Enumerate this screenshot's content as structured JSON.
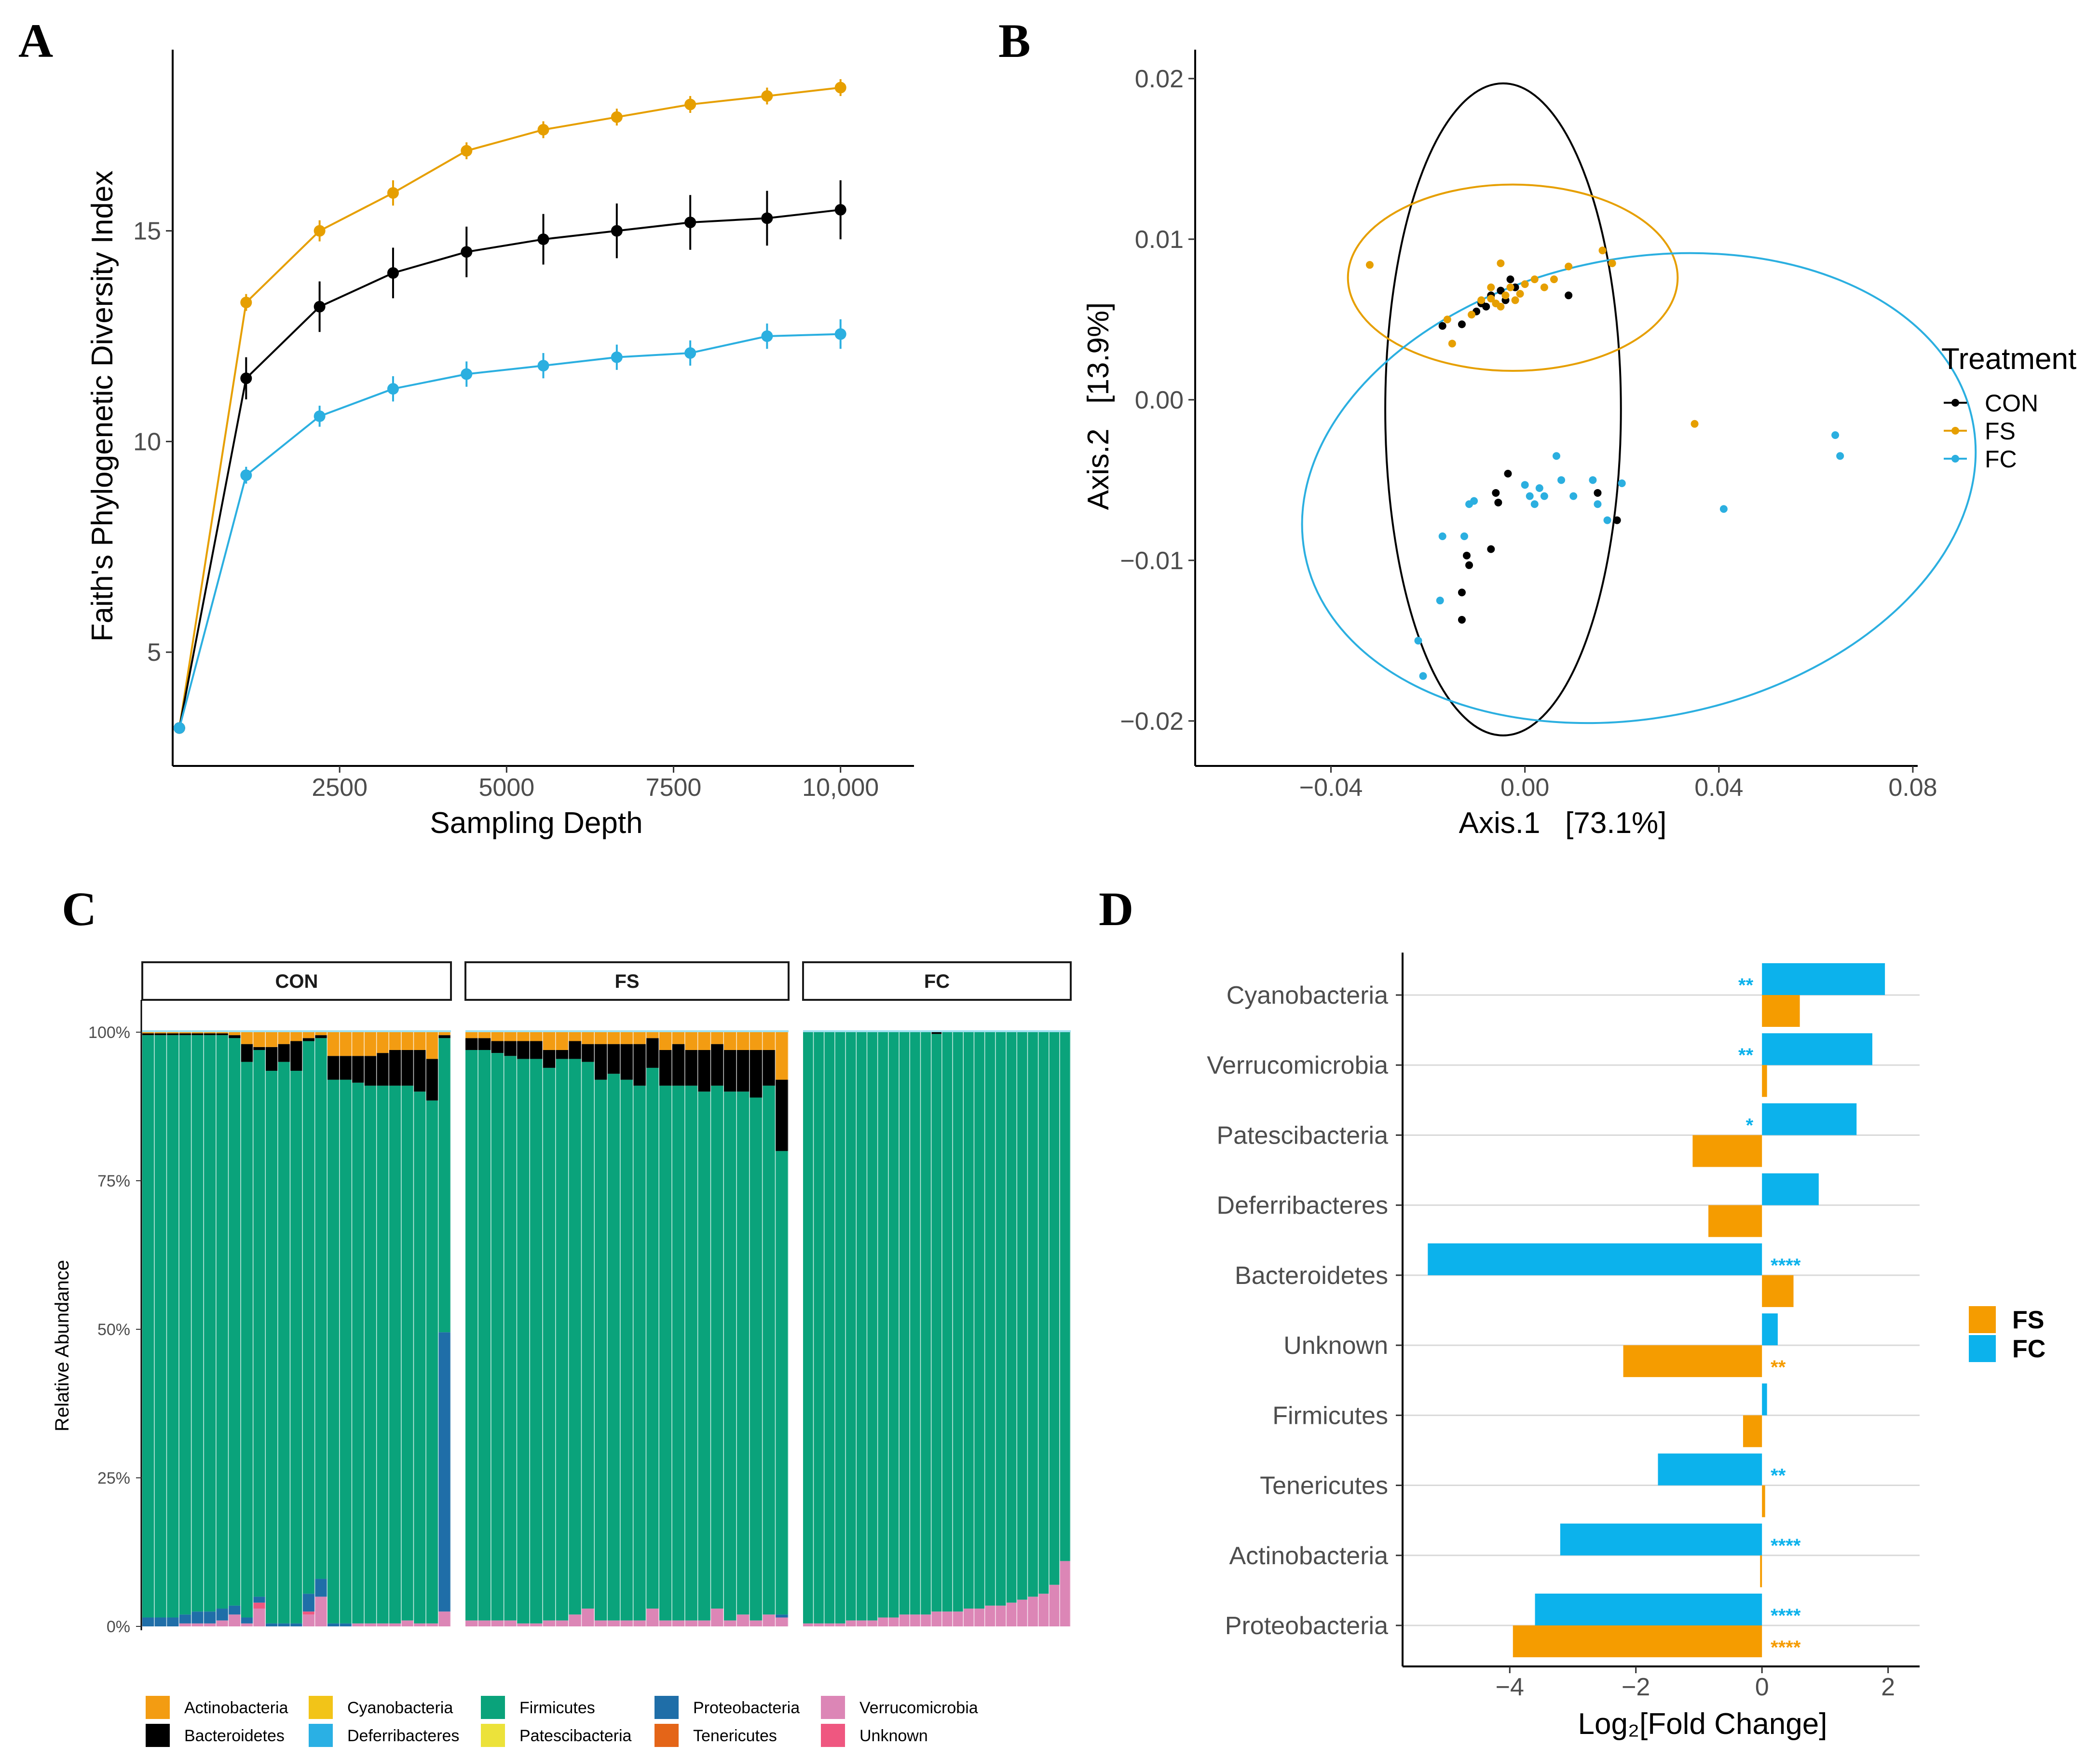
{
  "panels": {
    "a": "A",
    "b": "B",
    "c": "C",
    "d": "D"
  },
  "colors": {
    "CON": "#000000",
    "FS": "#e69f00",
    "FC": "#2bafe0",
    "d_FS": "#f59c00",
    "d_FC": "#0cb2ec"
  },
  "chart_data": [
    {
      "type": "line",
      "panel": "A",
      "title": "",
      "xlabel": "Sampling Depth",
      "ylabel": "Faith's Phylogenetic Diversity Index",
      "xlim": [
        0,
        11100
      ],
      "ylim": [
        2.3,
        19.3
      ],
      "xticks": [
        2500,
        5000,
        7500,
        10000
      ],
      "xtick_labels": [
        "2500",
        "5000",
        "7500",
        "10,000"
      ],
      "yticks": [
        5,
        10,
        15
      ],
      "ytick_labels": [
        "5",
        "10",
        "15"
      ],
      "x": [
        100,
        1100,
        2200,
        3300,
        4400,
        5550,
        6650,
        7750,
        8900,
        10000
      ],
      "series": [
        {
          "name": "FS",
          "color": "#e69f00",
          "values": [
            3.2,
            13.3,
            15.0,
            15.9,
            16.9,
            17.4,
            17.7,
            18.0,
            18.2,
            18.4
          ],
          "err": [
            0.1,
            0.2,
            0.25,
            0.3,
            0.2,
            0.2,
            0.2,
            0.2,
            0.2,
            0.2
          ]
        },
        {
          "name": "CON",
          "color": "#000000",
          "values": [
            3.2,
            11.5,
            13.2,
            14.0,
            14.5,
            14.8,
            15.0,
            15.2,
            15.3,
            15.5
          ],
          "err": [
            0.1,
            0.5,
            0.6,
            0.6,
            0.6,
            0.6,
            0.65,
            0.65,
            0.65,
            0.7
          ]
        },
        {
          "name": "FC",
          "color": "#2bafe0",
          "values": [
            3.2,
            9.2,
            10.6,
            11.25,
            11.6,
            11.8,
            12.0,
            12.1,
            12.5,
            12.55
          ],
          "err": [
            0.1,
            0.2,
            0.25,
            0.3,
            0.3,
            0.3,
            0.3,
            0.3,
            0.3,
            0.35
          ]
        }
      ]
    },
    {
      "type": "scatter",
      "panel": "B",
      "title": "",
      "xlabel": "Axis.1   [73.1%]",
      "ylabel": "Axis.2   [13.9%]",
      "xlim": [
        -0.068,
        0.081
      ],
      "ylim": [
        -0.0228,
        0.0218
      ],
      "xticks": [
        -0.04,
        0,
        0.04,
        0.08
      ],
      "xtick_labels": [
        "−0.04",
        "0.00",
        "0.04",
        "0.08"
      ],
      "yticks": [
        -0.02,
        -0.01,
        0,
        0.01,
        0.02
      ],
      "ytick_labels": [
        "−0.02",
        "−0.01",
        "0.00",
        "0.01",
        "0.02"
      ],
      "legend_title": "Treatment",
      "series": [
        {
          "name": "CON",
          "color": "#000000",
          "points": [
            [
              -0.017,
              0.0046
            ],
            [
              -0.013,
              0.0047
            ],
            [
              -0.01,
              0.0055
            ],
            [
              -0.009,
              0.006
            ],
            [
              -0.007,
              0.0065
            ],
            [
              -0.005,
              0.0068
            ],
            [
              -0.004,
              0.0062
            ],
            [
              -0.003,
              0.0075
            ],
            [
              -0.002,
              0.007
            ],
            [
              -0.008,
              0.0058
            ],
            [
              0.009,
              0.0065
            ],
            [
              -0.0035,
              -0.0046
            ],
            [
              -0.006,
              -0.0058
            ],
            [
              -0.0055,
              -0.0064
            ],
            [
              -0.007,
              -0.0093
            ],
            [
              -0.012,
              -0.0097
            ],
            [
              -0.0115,
              -0.0103
            ],
            [
              -0.013,
              -0.012
            ],
            [
              -0.013,
              -0.0137
            ],
            [
              0.015,
              -0.0058
            ],
            [
              0.019,
              -0.0075
            ]
          ],
          "ellipse": {
            "cx": -0.0045,
            "cy": -0.0006,
            "rx": 0.0243,
            "ry": 0.0203,
            "angle_deg": 0
          }
        },
        {
          "name": "FS",
          "color": "#e69f00",
          "points": [
            [
              -0.032,
              0.0084
            ],
            [
              -0.016,
              0.005
            ],
            [
              -0.015,
              0.0035
            ],
            [
              -0.011,
              0.0053
            ],
            [
              -0.009,
              0.0062
            ],
            [
              -0.007,
              0.0063
            ],
            [
              -0.006,
              0.006
            ],
            [
              -0.005,
              0.0058
            ],
            [
              -0.004,
              0.0065
            ],
            [
              -0.003,
              0.007
            ],
            [
              -0.002,
              0.0062
            ],
            [
              0.0,
              0.0072
            ],
            [
              0.002,
              0.0075
            ],
            [
              0.004,
              0.007
            ],
            [
              0.006,
              0.0075
            ],
            [
              0.009,
              0.0083
            ],
            [
              0.016,
              0.0093
            ],
            [
              0.018,
              0.0085
            ],
            [
              -0.005,
              0.0085
            ],
            [
              -0.001,
              0.0066
            ],
            [
              -0.007,
              0.007
            ],
            [
              0.035,
              -0.0015
            ]
          ],
          "ellipse": {
            "cx": -0.0025,
            "cy": 0.0076,
            "rx": 0.034,
            "ry": 0.0058,
            "angle_deg": 0
          }
        },
        {
          "name": "FC",
          "color": "#2bafe0",
          "points": [
            [
              -0.022,
              -0.015
            ],
            [
              -0.021,
              -0.0172
            ],
            [
              -0.0175,
              -0.0125
            ],
            [
              -0.017,
              -0.0085
            ],
            [
              -0.0125,
              -0.0085
            ],
            [
              -0.0115,
              -0.0065
            ],
            [
              -0.0105,
              -0.0063
            ],
            [
              0.0,
              -0.0053
            ],
            [
              0.001,
              -0.006
            ],
            [
              0.003,
              -0.0055
            ],
            [
              0.004,
              -0.006
            ],
            [
              0.0065,
              -0.0035
            ],
            [
              0.0075,
              -0.005
            ],
            [
              0.01,
              -0.006
            ],
            [
              0.014,
              -0.005
            ],
            [
              0.015,
              -0.0065
            ],
            [
              0.017,
              -0.0075
            ],
            [
              0.02,
              -0.0052
            ],
            [
              0.041,
              -0.0068
            ],
            [
              0.064,
              -0.0022
            ],
            [
              0.065,
              -0.0035
            ],
            [
              0.002,
              -0.0065
            ]
          ],
          "ellipse": {
            "cx": 0.0235,
            "cy": -0.0055,
            "rx": 0.0702,
            "ry": 0.0143,
            "angle_deg": -11.4
          }
        }
      ]
    },
    {
      "type": "bar",
      "subtype": "stacked-100",
      "panel": "C",
      "ylabel": "Relative Abundance",
      "ylim": [
        0,
        100
      ],
      "ytick_labels": [
        "0%",
        "25%",
        "50%",
        "75%",
        "100%"
      ],
      "yticks": [
        0,
        25,
        50,
        75,
        100
      ],
      "facets": [
        "CON",
        "FS",
        "FC"
      ],
      "categories_order": [
        "Actinobacteria",
        "Bacteroidetes",
        "Cyanobacteria",
        "Deferribacteres",
        "Firmicutes",
        "Patescibacteria",
        "Proteobacteria",
        "Tenericutes",
        "Verrucomicrobia",
        "Unknown"
      ],
      "legend": [
        {
          "name": "Actinobacteria",
          "color": "#f39c12"
        },
        {
          "name": "Bacteroidetes",
          "color": "#000000"
        },
        {
          "name": "Cyanobacteria",
          "color": "#f2c418"
        },
        {
          "name": "Deferribacteres",
          "color": "#2ab0e4"
        },
        {
          "name": "Firmicutes",
          "color": "#0aa37b"
        },
        {
          "name": "Patescibacteria",
          "color": "#ece23a"
        },
        {
          "name": "Proteobacteria",
          "color": "#1f6ea8"
        },
        {
          "name": "Tenericutes",
          "color": "#e46518"
        },
        {
          "name": "Verrucomicrobia",
          "color": "#dc86b6"
        },
        {
          "name": "Unknown",
          "color": "#ef5780"
        }
      ],
      "samples": {
        "CON": [
          {
            "Ver": 0,
            "Pro": 1.5,
            "Bac": 0.3,
            "Act": 0.2
          },
          {
            "Ver": 0,
            "Pro": 1.5,
            "Bac": 0.3,
            "Act": 0.2
          },
          {
            "Ver": 0,
            "Pro": 1.5,
            "Bac": 0.3,
            "Act": 0.2
          },
          {
            "Ver": 0.5,
            "Pro": 1.5,
            "Bac": 0.3,
            "Act": 0.2
          },
          {
            "Ver": 0.5,
            "Pro": 2,
            "Bac": 0.3,
            "Act": 0.2
          },
          {
            "Ver": 0.5,
            "Pro": 2,
            "Bac": 0.3,
            "Act": 0.2
          },
          {
            "Ver": 1,
            "Pro": 2,
            "Bac": 0.3,
            "Act": 0.2
          },
          {
            "Ver": 2,
            "Pro": 1.5,
            "Bac": 0.5,
            "Act": 0.5
          },
          {
            "Ver": 0.5,
            "Pro": 1,
            "Bac": 3,
            "Act": 2
          },
          {
            "Ver": 3,
            "Pro": 1,
            "Unk": 1,
            "Bac": 0.5,
            "Act": 2.5
          },
          {
            "Ver": 0,
            "Pro": 0.5,
            "Bac": 4,
            "Act": 2.5
          },
          {
            "Ver": 0,
            "Pro": 0.5,
            "Bac": 3,
            "Act": 2
          },
          {
            "Ver": 0,
            "Pro": 0.5,
            "Bac": 5,
            "Act": 1.5
          },
          {
            "Ver": 2,
            "Pro": 3,
            "Unk": 0.5,
            "Bac": 0.5,
            "Act": 1
          },
          {
            "Ver": 5,
            "Pro": 3,
            "Bac": 0.5,
            "Act": 0.5
          },
          {
            "Ver": 0,
            "Pro": 0.5,
            "Bac": 4,
            "Act": 4
          },
          {
            "Ver": 0,
            "Pro": 0.5,
            "Bac": 4,
            "Act": 4
          },
          {
            "Ver": 0.5,
            "Pro": 0,
            "Bac": 4.5,
            "Act": 4
          },
          {
            "Ver": 0.5,
            "Pro": 0,
            "Bac": 5,
            "Act": 4
          },
          {
            "Ver": 0.5,
            "Pro": 0,
            "Bac": 5.5,
            "Act": 3.5
          },
          {
            "Ver": 0.5,
            "Pro": 0,
            "Bac": 6,
            "Act": 3
          },
          {
            "Ver": 1,
            "Pro": 0,
            "Bac": 6,
            "Act": 3
          },
          {
            "Ver": 0.5,
            "Pro": 0,
            "Bac": 7,
            "Act": 3
          },
          {
            "Ver": 0.5,
            "Pro": 0,
            "Bac": 7,
            "Act": 4.5
          },
          {
            "Ver": 2.5,
            "Pro": 47,
            "Bac": 0.5,
            "Act": 0.5
          }
        ],
        "FS": [
          {
            "Ver": 1,
            "Bac": 2,
            "Act": 1
          },
          {
            "Ver": 1,
            "Bac": 2,
            "Act": 1
          },
          {
            "Ver": 1,
            "Bac": 2,
            "Act": 1.5
          },
          {
            "Ver": 1,
            "Bac": 2.5,
            "Act": 1.5
          },
          {
            "Ver": 0.5,
            "Bac": 3,
            "Act": 1.5
          },
          {
            "Ver": 0.5,
            "Bac": 3,
            "Act": 1.5
          },
          {
            "Ver": 1,
            "Bac": 3,
            "Act": 3
          },
          {
            "Ver": 1,
            "Bac": 1.5,
            "Act": 3
          },
          {
            "Ver": 2,
            "Bac": 3,
            "Act": 1.5
          },
          {
            "Ver": 3,
            "Bac": 3,
            "Act": 2
          },
          {
            "Ver": 1,
            "Bac": 6,
            "Act": 2
          },
          {
            "Ver": 1,
            "Bac": 5,
            "Act": 2
          },
          {
            "Ver": 1,
            "Bac": 6,
            "Act": 2
          },
          {
            "Ver": 1,
            "Bac": 7,
            "Act": 2
          },
          {
            "Ver": 3,
            "Bac": 5,
            "Act": 1
          },
          {
            "Ver": 1,
            "Bac": 6,
            "Act": 3
          },
          {
            "Ver": 1,
            "Bac": 7,
            "Act": 2
          },
          {
            "Ver": 1,
            "Bac": 6,
            "Act": 3
          },
          {
            "Ver": 1,
            "Bac": 7,
            "Act": 3
          },
          {
            "Ver": 3,
            "Bac": 7,
            "Act": 2
          },
          {
            "Ver": 1,
            "Bac": 7,
            "Act": 3
          },
          {
            "Ver": 2,
            "Bac": 7,
            "Act": 3
          },
          {
            "Ver": 1,
            "Bac": 8,
            "Act": 3
          },
          {
            "Ver": 2,
            "Bac": 6,
            "Act": 3
          },
          {
            "Ver": 1.5,
            "Pro": 0.5,
            "Bac": 12,
            "Act": 8
          }
        ],
        "FC": [
          {
            "Ver": 0.5
          },
          {
            "Ver": 0.5
          },
          {
            "Ver": 0.5
          },
          {
            "Ver": 0.5
          },
          {
            "Ver": 1
          },
          {
            "Ver": 1
          },
          {
            "Ver": 1
          },
          {
            "Ver": 1.5
          },
          {
            "Ver": 1.5
          },
          {
            "Ver": 2
          },
          {
            "Ver": 2
          },
          {
            "Ver": 2
          },
          {
            "Ver": 2.5,
            "Bac": 0.3
          },
          {
            "Ver": 2.5
          },
          {
            "Ver": 2.5
          },
          {
            "Ver": 3
          },
          {
            "Ver": 3
          },
          {
            "Ver": 3.5
          },
          {
            "Ver": 3.5
          },
          {
            "Ver": 4
          },
          {
            "Ver": 4.5
          },
          {
            "Ver": 5
          },
          {
            "Ver": 5.5
          },
          {
            "Ver": 7
          },
          {
            "Ver": 11
          }
        ]
      }
    },
    {
      "type": "bar",
      "subtype": "horizontal-grouped",
      "panel": "D",
      "xlabel": "Log₂[Fold Change]",
      "xlim": [
        -5.7,
        2.5
      ],
      "xticks": [
        -4,
        -2,
        0,
        2
      ],
      "xtick_labels": [
        "−4",
        "−2",
        "0",
        "2"
      ],
      "categories": [
        "Cyanobacteria",
        "Verrucomicrobia",
        "Patescibacteria",
        "Deferribacteres",
        "Bacteroidetes",
        "Unknown",
        "Firmicutes",
        "Tenericutes",
        "Actinobacteria",
        "Proteobacteria"
      ],
      "series": [
        {
          "name": "FC",
          "color": "#0cb2ec",
          "values": [
            1.95,
            1.75,
            1.5,
            0.9,
            -5.3,
            0.25,
            0.08,
            -1.65,
            -3.2,
            -3.6
          ],
          "stars": [
            "**",
            "**",
            "*",
            "",
            "****",
            "",
            "",
            "**",
            "****",
            "****"
          ]
        },
        {
          "name": "FS",
          "color": "#f59c00",
          "values": [
            0.6,
            0.08,
            -1.1,
            -0.85,
            0.5,
            -2.2,
            -0.3,
            0.05,
            -0.03,
            -3.95
          ],
          "stars": [
            "",
            "",
            "",
            "",
            "",
            "**",
            "",
            "",
            "",
            "****"
          ]
        }
      ],
      "legend": [
        "FS",
        "FC"
      ]
    }
  ]
}
